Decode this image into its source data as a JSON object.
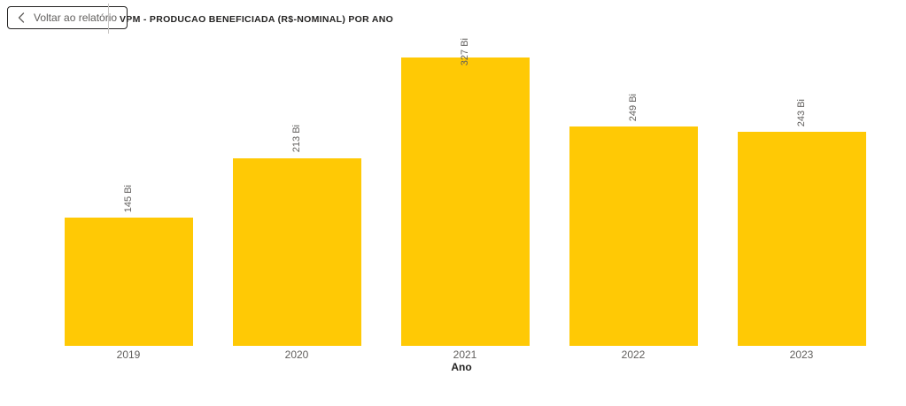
{
  "header": {
    "back_button": {
      "label": "Voltar ao relatório"
    },
    "title": "VPM - PRODUCAO BENEFICIADA (R$-NOMINAL) POR ANO"
  },
  "chart_data": {
    "type": "bar",
    "title": "VPM - PRODUCAO BENEFICIADA (R$-NOMINAL) POR ANO",
    "categories": [
      "2019",
      "2020",
      "2021",
      "2022",
      "2023"
    ],
    "values": [
      145,
      213,
      327,
      249,
      243
    ],
    "data_labels": [
      "145 Bi",
      "213 Bi",
      "327 Bi",
      "249 Bi",
      "243 Bi"
    ],
    "unit": "Bi",
    "xlabel": "Ano",
    "ylabel": "",
    "ylim": [
      0,
      327
    ],
    "grid": false,
    "legend": false,
    "y_axis_visible": false,
    "data_label_orientation": "vertical",
    "data_label_position": "outside-end",
    "bar_color": "#FFC905",
    "label_color": "#605E5C",
    "tick_color": "#605E5C",
    "axis_title_color": "#252423"
  }
}
